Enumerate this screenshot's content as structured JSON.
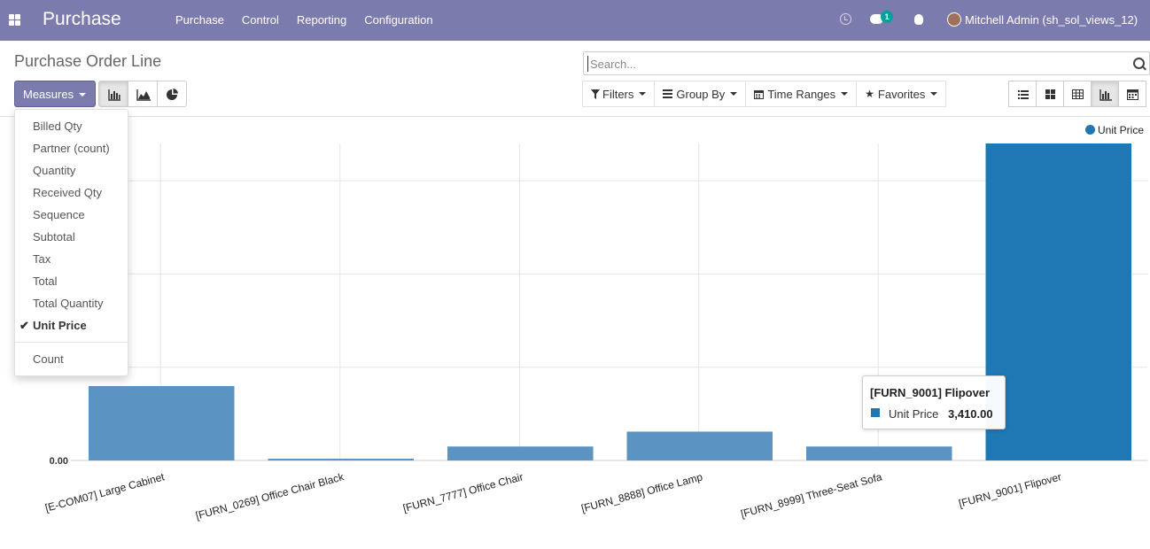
{
  "navbar": {
    "app_title": "Purchase",
    "menu": [
      "Purchase",
      "Control",
      "Reporting",
      "Configuration"
    ],
    "chat_badge": "1",
    "user_name": "Mitchell Admin (sh_sol_views_12)"
  },
  "page_title": "Purchase Order Line",
  "search": {
    "placeholder": "Search..."
  },
  "toolbar": {
    "measures_label": "Measures",
    "filters_label": "Filters",
    "group_by_label": "Group By",
    "time_ranges_label": "Time Ranges",
    "favorites_label": "Favorites"
  },
  "measures_menu": {
    "items": [
      "Billed Qty",
      "Partner (count)",
      "Quantity",
      "Received Qty",
      "Sequence",
      "Subtotal",
      "Tax",
      "Total",
      "Total Quantity",
      "Unit Price"
    ],
    "selected": "Unit Price",
    "count_label": "Count"
  },
  "chart_data": {
    "type": "bar",
    "categories": [
      "[E-COM07] Large Cabinet",
      "[FURN_0269] Office Chair Black",
      "[FURN_7777] Office Chair",
      "[FURN_8888] Office Lamp",
      "[FURN_8999] Three-Seat Sofa",
      "[FURN_9001] Flipover"
    ],
    "series": [
      {
        "name": "Unit Price",
        "values": [
          800,
          14,
          150,
          310,
          150,
          3410
        ]
      }
    ],
    "ylim": [
      0,
      3410
    ],
    "y_tick_label": "0.00",
    "legend_position": "top-right",
    "grid": true,
    "bar_color": "#5b93c3",
    "highlight_color": "#1f77b4",
    "highlighted_index": 5
  },
  "tooltip": {
    "title": "[FURN_9001] Flipover",
    "series": "Unit Price",
    "value": "3,410.00"
  }
}
